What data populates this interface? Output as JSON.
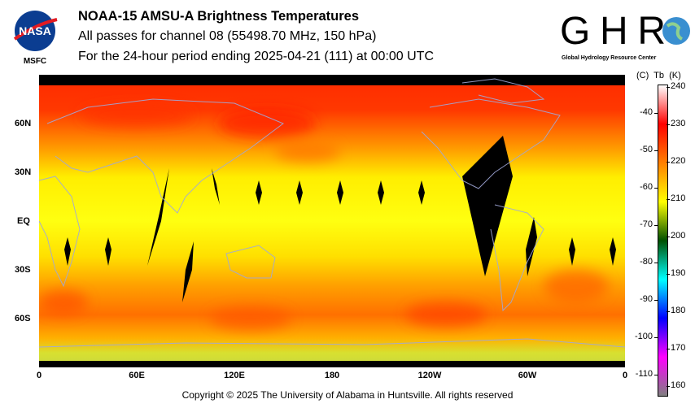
{
  "header": {
    "title": "NOAA-15 AMSU-A Brightness Temperatures",
    "subtitle": "All passes for channel 08 (55498.70 MHz, 150 hPa)",
    "period": "For the 24-hour period ending 2025-04-21 (111) at 00:00 UTC"
  },
  "logos": {
    "nasa": {
      "text": "NASA",
      "label": "MSFC"
    },
    "ghrc": {
      "text": "GHRC",
      "label": "Global Hydrology Resource Center"
    }
  },
  "map": {
    "lat_labels": [
      "60N",
      "30N",
      "EQ",
      "30S",
      "60S"
    ],
    "lon_labels": [
      "0",
      "60E",
      "120E",
      "180",
      "120W",
      "60W",
      "0"
    ]
  },
  "colorbar": {
    "header": "(C)  Tb  (K)",
    "kelvin_labels": [
      "240",
      "230",
      "220",
      "210",
      "200",
      "190",
      "180",
      "170",
      "160"
    ],
    "celsius_labels": [
      "-40",
      "-50",
      "-60",
      "-70",
      "-80",
      "-90",
      "-100",
      "-110"
    ],
    "colors": [
      "#ffffff",
      "#ff0000",
      "#ff8000",
      "#ffff00",
      "#005000",
      "#00ffff",
      "#0000ff",
      "#ff00ff",
      "#808080"
    ]
  },
  "footer": {
    "copyright": "Copyright © 2025 The University of Alabama in Huntsville.  All rights reserved"
  }
}
